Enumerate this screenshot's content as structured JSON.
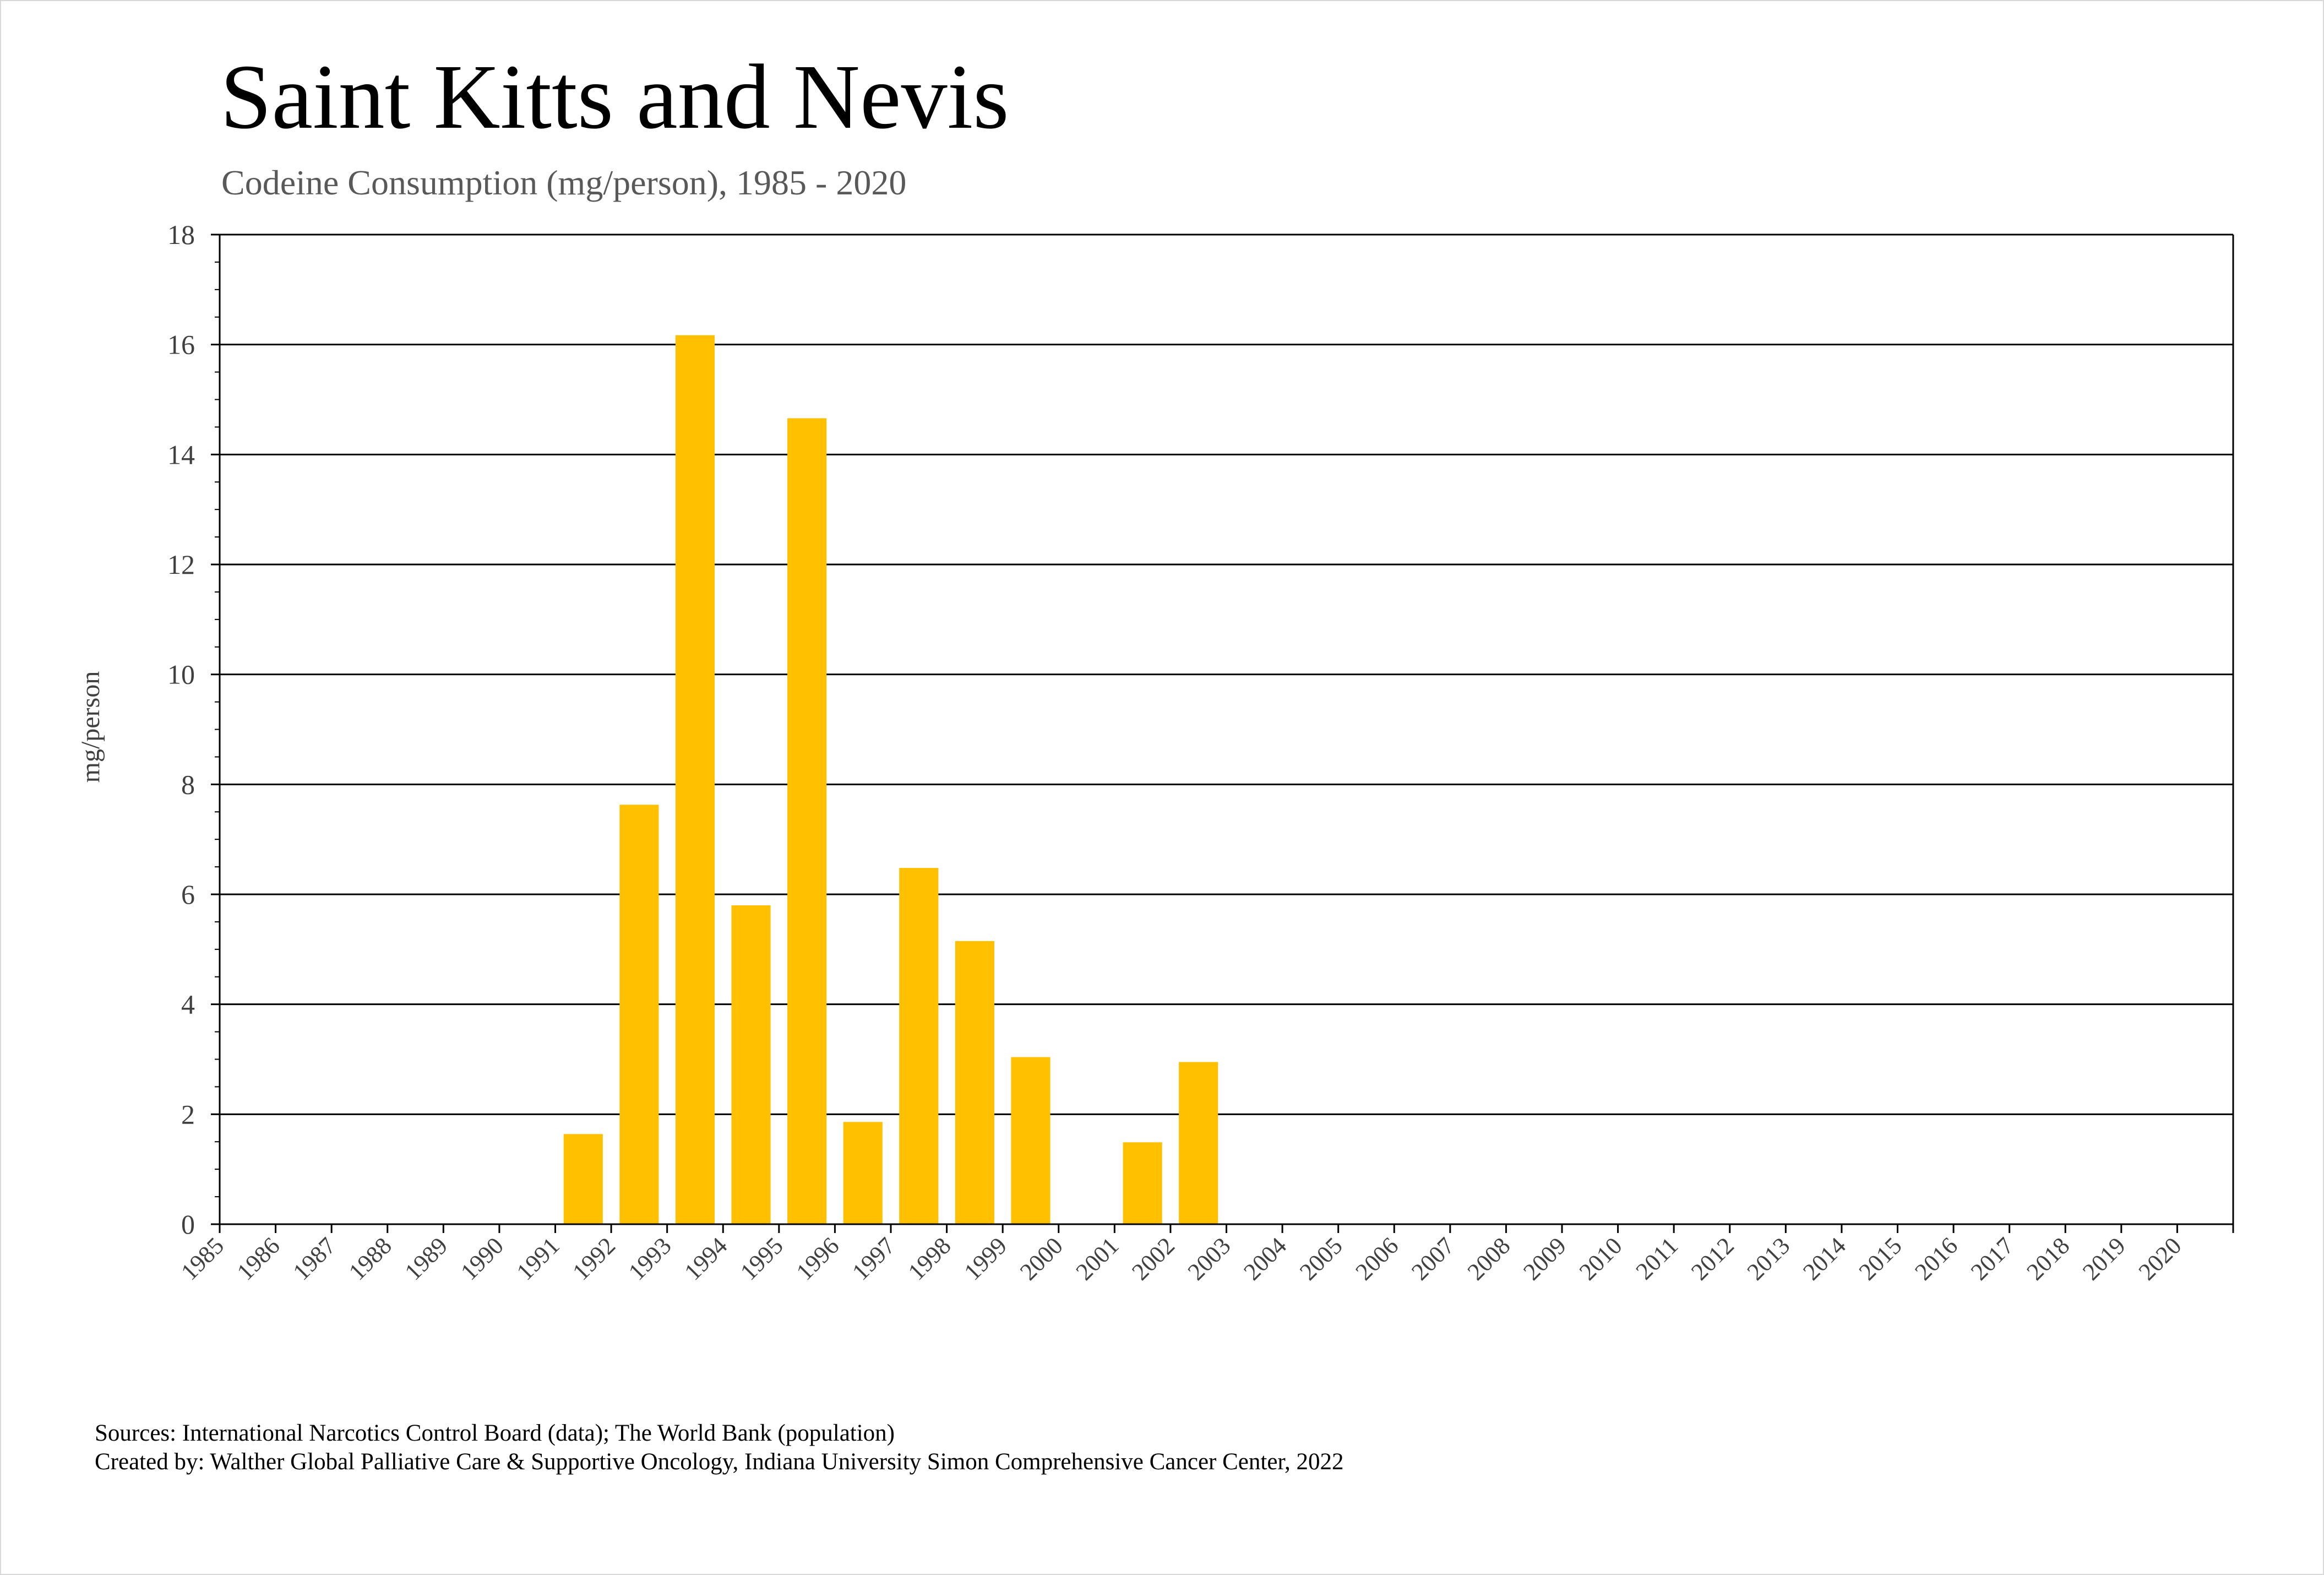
{
  "chart_data": {
    "type": "bar",
    "title": "Saint Kitts and Nevis",
    "subtitle": "Codeine Consumption (mg/person), 1985 - 2020",
    "xlabel": "",
    "ylabel": "mg/person",
    "ylim": [
      0,
      18
    ],
    "yticks": [
      0,
      2,
      4,
      6,
      8,
      10,
      12,
      14,
      16,
      18
    ],
    "grid": true,
    "bar_color": "#FFC000",
    "categories": [
      "1985",
      "1986",
      "1987",
      "1988",
      "1989",
      "1990",
      "1991",
      "1992",
      "1993",
      "1994",
      "1995",
      "1996",
      "1997",
      "1998",
      "1999",
      "2000",
      "2001",
      "2002",
      "2003",
      "2004",
      "2005",
      "2006",
      "2007",
      "2008",
      "2009",
      "2010",
      "2011",
      "2012",
      "2013",
      "2014",
      "2015",
      "2016",
      "2017",
      "2018",
      "2019",
      "2020"
    ],
    "values": [
      0,
      0,
      0,
      0,
      0,
      0,
      1.64,
      7.63,
      16.17,
      5.8,
      14.66,
      1.86,
      6.48,
      5.15,
      3.04,
      0,
      1.49,
      2.95,
      0,
      0,
      0,
      0,
      0,
      0,
      0,
      0,
      0,
      0,
      0,
      0,
      0,
      0,
      0,
      0,
      0,
      0
    ]
  },
  "footer": {
    "sources": "Sources: International Narcotics Control Board (data); The World Bank (population)",
    "created_by": "Created by: Walther Global Palliative Care & Supportive Oncology, Indiana University Simon Comprehensive Cancer Center, 2022"
  }
}
